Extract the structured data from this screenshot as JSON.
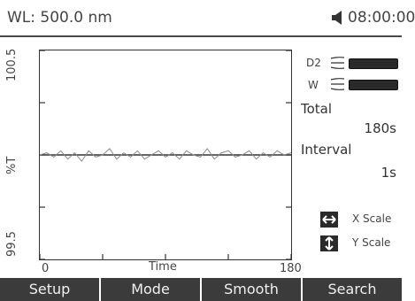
{
  "header": {
    "wavelength": "WL:  500.0 nm",
    "sound_icon": "speaker-icon",
    "time": "08:00:00"
  },
  "plot": {
    "y_top": "100.5",
    "y_mid": "%T",
    "y_bottom": "99.5",
    "x_left": "0",
    "x_mid": "Time",
    "x_right": "180"
  },
  "chart_data": {
    "type": "line",
    "xlabel": "Time",
    "ylabel": "%T",
    "xlim": [
      0,
      180
    ],
    "ylim": [
      99.5,
      100.5
    ],
    "series": [
      {
        "x": [
          0,
          5,
          10,
          15,
          20,
          25,
          30,
          35,
          40,
          45,
          50,
          55,
          60,
          65,
          70,
          75,
          80,
          85,
          90,
          95,
          100,
          105,
          110,
          115,
          120,
          125,
          130,
          135,
          140,
          145,
          150,
          155,
          160,
          165,
          170,
          175,
          180
        ],
        "values": [
          100.0,
          100.01,
          99.99,
          100.02,
          99.98,
          100.01,
          99.97,
          100.02,
          99.99,
          100.0,
          100.03,
          99.98,
          100.01,
          99.99,
          100.02,
          99.98,
          100.0,
          100.02,
          99.99,
          100.01,
          99.98,
          100.02,
          100.0,
          99.99,
          100.03,
          99.98,
          100.01,
          100.02,
          99.99,
          100.0,
          100.02,
          99.98,
          100.01,
          99.99,
          100.02,
          100.0,
          100.01
        ]
      }
    ]
  },
  "lamps": {
    "d2_label": "D2",
    "w_label": "W",
    "lamp_icon": "lamp-icon"
  },
  "panel": {
    "total_label": "Total",
    "total_value": "180s",
    "interval_label": "Interval",
    "interval_value": "1s",
    "x_scale": "X Scale",
    "y_scale": "Y Scale",
    "x_scale_icon": "horizontal-arrows-icon",
    "y_scale_icon": "vertical-arrows-icon"
  },
  "softkeys": [
    "Setup",
    "Mode",
    "Smooth",
    "Search"
  ],
  "colors": {
    "softkey_bg": "#3b3b3b",
    "trace": "#8a8a8a",
    "baseline": "#333333"
  }
}
